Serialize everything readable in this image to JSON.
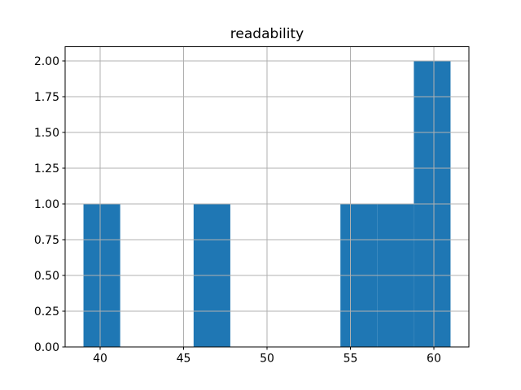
{
  "chart_data": {
    "type": "bar",
    "subtype": "histogram",
    "title": "readability",
    "xlabel": "",
    "ylabel": "",
    "bin_edges": [
      39.0,
      41.2,
      43.4,
      45.6,
      47.8,
      50.0,
      52.2,
      54.4,
      56.6,
      58.8,
      61.0
    ],
    "counts": [
      1,
      0,
      0,
      1,
      0,
      0,
      0,
      1,
      1,
      2
    ],
    "xlim": [
      37.9,
      62.1
    ],
    "ylim": [
      0,
      2.1
    ],
    "x_ticks": [
      40,
      45,
      50,
      55,
      60
    ],
    "x_tick_labels": [
      "40",
      "45",
      "50",
      "55",
      "60"
    ],
    "y_ticks": [
      0,
      0.25,
      0.5,
      0.75,
      1,
      1.25,
      1.5,
      1.75,
      2
    ],
    "y_tick_labels": [
      "0.00",
      "0.25",
      "0.50",
      "0.75",
      "1.00",
      "1.25",
      "1.50",
      "1.75",
      "2.00"
    ],
    "grid": true,
    "grid_on_top_of_bars": true,
    "legend": null,
    "colors": {
      "bar": "#1f77b4",
      "grid": "#b0b0b0",
      "axis": "#000000",
      "text": "#000000",
      "background": "#ffffff"
    }
  }
}
